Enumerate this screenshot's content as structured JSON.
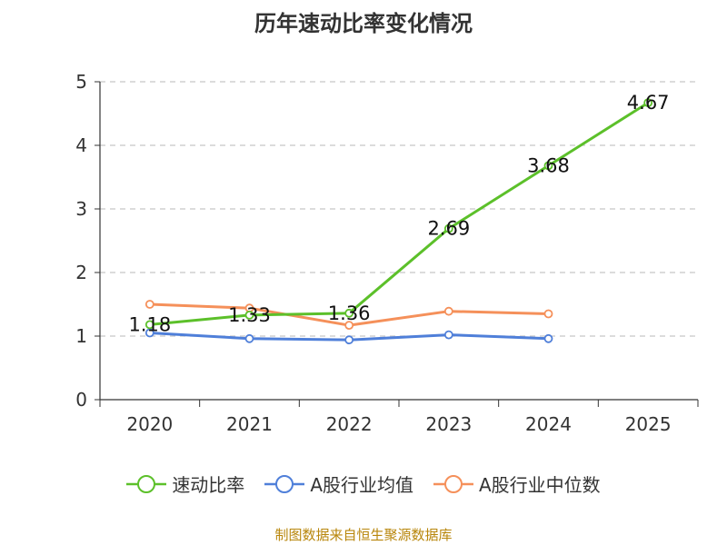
{
  "chart_data": {
    "type": "line",
    "title": "历年速动比率变化情况",
    "categories": [
      "2020",
      "2021",
      "2022",
      "2023",
      "2024",
      "2025"
    ],
    "ylim": [
      0,
      5
    ],
    "yticks": [
      0,
      1,
      2,
      3,
      4,
      5
    ],
    "grid": true,
    "legend_position": "bottom",
    "series": [
      {
        "name": "速动比率",
        "color": "#5cc02a",
        "values": [
          1.18,
          1.33,
          1.36,
          2.69,
          3.68,
          4.67
        ],
        "labels": [
          "1.18",
          "1.33",
          "1.36",
          "2.69",
          "3.68",
          "4.67"
        ],
        "show_labels": true
      },
      {
        "name": "A股行业均值",
        "color": "#4f7fd9",
        "values": [
          1.05,
          0.96,
          0.94,
          1.02,
          0.96,
          null
        ],
        "show_labels": false
      },
      {
        "name": "A股行业中位数",
        "color": "#f5905a",
        "values": [
          1.5,
          1.44,
          1.17,
          1.39,
          1.35,
          null
        ],
        "show_labels": false
      }
    ]
  },
  "source": "制图数据来自恒生聚源数据库"
}
